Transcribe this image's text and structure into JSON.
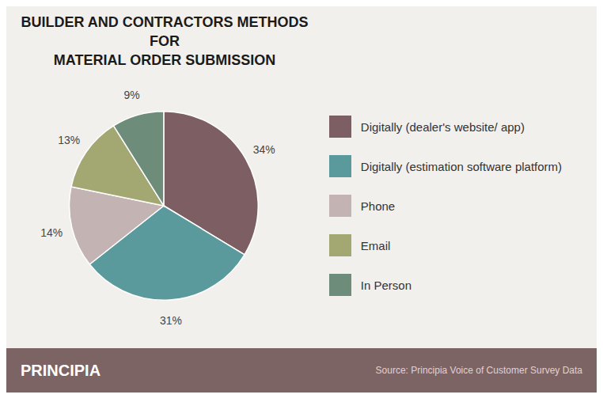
{
  "chart_data": {
    "type": "pie",
    "title": "BUILDER AND CONTRACTORS METHODS FOR\nMATERIAL ORDER SUBMISSION",
    "categories": [
      "Digitally (dealer's website/ app)",
      "Digitally (estimation software platform)",
      "Phone",
      "Email",
      "In Person"
    ],
    "values": [
      34,
      31,
      14,
      13,
      9
    ],
    "value_labels": [
      "34%",
      "31%",
      "14%",
      "13%",
      "9%"
    ],
    "colors": [
      "#7D5F63",
      "#5B9A9C",
      "#C4B3B3",
      "#A3A872",
      "#6E8C7A"
    ],
    "data_labels": true,
    "legend": "right",
    "annotations": [
      "PRINCIPIA",
      "Source: Principia Voice of Customer Survey Data"
    ]
  }
}
